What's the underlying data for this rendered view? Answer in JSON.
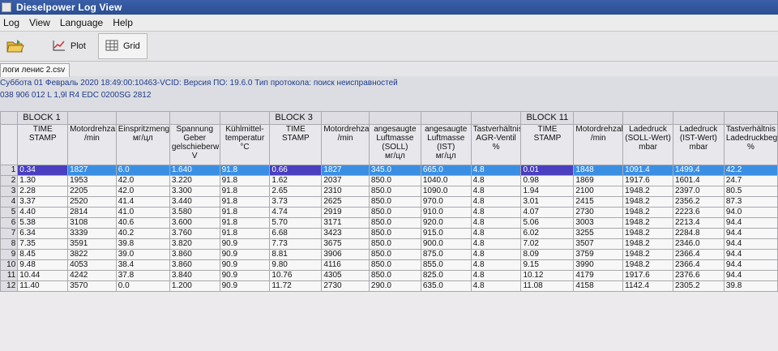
{
  "window": {
    "title": "Dieselpower Log View"
  },
  "menu": [
    "Log",
    "View",
    "Language",
    "Help"
  ],
  "toolbar": {
    "plot_label": "Plot",
    "grid_label": "Grid"
  },
  "tab": {
    "label": "логи ленис 2.csv"
  },
  "info_line1": "Суббота 01 Февраль 2020 18:49:00:10463-VCID: Версия ПО: 19.6.0 Тип протокола: поиск неисправностей",
  "info_line2": "038 906 012 L  1,9l R4 EDC 0200SG  2812",
  "grid": {
    "blocks": [
      "BLOCK 1",
      "BLOCK 3",
      "BLOCK 11"
    ],
    "columns": [
      {
        "label": "TIME STAMP",
        "unit": ""
      },
      {
        "label": "Motordrehzahl",
        "unit": "/min"
      },
      {
        "label": "Einspritzmeng",
        "unit": "мг/цл"
      },
      {
        "label": "Spannung Geber gelschieberw",
        "unit": "V"
      },
      {
        "label": "Kühlmittel-temperatur",
        "unit": "°C"
      },
      {
        "label": "TIME STAMP",
        "unit": ""
      },
      {
        "label": "Motordrehzahl",
        "unit": "/min"
      },
      {
        "label": "angesaugte Luftmasse (SOLL)",
        "unit": "мг/цл"
      },
      {
        "label": "angesaugte Luftmasse (IST)",
        "unit": "мг/цл"
      },
      {
        "label": "Tastverhältnis AGR-Ventil",
        "unit": "%"
      },
      {
        "label": "TIME STAMP",
        "unit": ""
      },
      {
        "label": "Motordrehzahl",
        "unit": "/min"
      },
      {
        "label": "Ladedruck (SOLL-Wert)",
        "unit": "mbar"
      },
      {
        "label": "Ladedruck (IST-Wert)",
        "unit": "mbar"
      },
      {
        "label": "Tastverhältnis Ladedruckbeg",
        "unit": "%"
      }
    ],
    "rows": [
      [
        "0.34",
        "1827",
        "6.0",
        "1.640",
        "91.8",
        "0.66",
        "1827",
        "345.0",
        "665.0",
        "4.8",
        "0.01",
        "1848",
        "1091.4",
        "1499.4",
        "42.2"
      ],
      [
        "1.30",
        "1953",
        "42.0",
        "3.220",
        "91.8",
        "1.62",
        "2037",
        "850.0",
        "1040.0",
        "4.8",
        "0.98",
        "1869",
        "1917.6",
        "1601.4",
        "24.7"
      ],
      [
        "2.28",
        "2205",
        "42.0",
        "3.300",
        "91.8",
        "2.65",
        "2310",
        "850.0",
        "1090.0",
        "4.8",
        "1.94",
        "2100",
        "1948.2",
        "2397.0",
        "80.5"
      ],
      [
        "3.37",
        "2520",
        "41.4",
        "3.440",
        "91.8",
        "3.73",
        "2625",
        "850.0",
        "970.0",
        "4.8",
        "3.01",
        "2415",
        "1948.2",
        "2356.2",
        "87.3"
      ],
      [
        "4.40",
        "2814",
        "41.0",
        "3.580",
        "91.8",
        "4.74",
        "2919",
        "850.0",
        "910.0",
        "4.8",
        "4.07",
        "2730",
        "1948.2",
        "2223.6",
        "94.0"
      ],
      [
        "5.38",
        "3108",
        "40.6",
        "3.600",
        "91.8",
        "5.70",
        "3171",
        "850.0",
        "920.0",
        "4.8",
        "5.06",
        "3003",
        "1948.2",
        "2213.4",
        "94.4"
      ],
      [
        "6.34",
        "3339",
        "40.2",
        "3.760",
        "91.8",
        "6.68",
        "3423",
        "850.0",
        "915.0",
        "4.8",
        "6.02",
        "3255",
        "1948.2",
        "2284.8",
        "94.4"
      ],
      [
        "7.35",
        "3591",
        "39.8",
        "3.820",
        "90.9",
        "7.73",
        "3675",
        "850.0",
        "900.0",
        "4.8",
        "7.02",
        "3507",
        "1948.2",
        "2346.0",
        "94.4"
      ],
      [
        "8.45",
        "3822",
        "39.0",
        "3.860",
        "90.9",
        "8.81",
        "3906",
        "850.0",
        "875.0",
        "4.8",
        "8.09",
        "3759",
        "1948.2",
        "2366.4",
        "94.4"
      ],
      [
        "9.48",
        "4053",
        "38.4",
        "3.860",
        "90.9",
        "9.80",
        "4116",
        "850.0",
        "855.0",
        "4.8",
        "9.15",
        "3990",
        "1948.2",
        "2366.4",
        "94.4"
      ],
      [
        "10.44",
        "4242",
        "37.8",
        "3.840",
        "90.9",
        "10.76",
        "4305",
        "850.0",
        "825.0",
        "4.8",
        "10.12",
        "4179",
        "1917.6",
        "2376.6",
        "94.4"
      ],
      [
        "11.40",
        "3570",
        "0.0",
        "1.200",
        "90.9",
        "11.72",
        "2730",
        "290.0",
        "635.0",
        "4.8",
        "11.08",
        "4158",
        "1142.4",
        "2305.2",
        "39.8"
      ]
    ]
  },
  "colors": {
    "selection": "#3b8fe3",
    "selection_first": "#4a3fbf",
    "titlebar": "#2c4f93",
    "info_text": "#1e3c8c"
  }
}
